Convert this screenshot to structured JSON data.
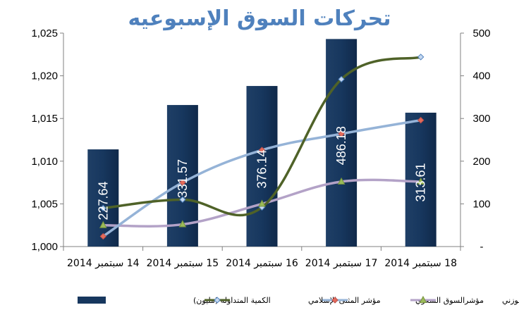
{
  "chart_data": {
    "type": "bar",
    "title": "تحركات السوق الإسبوعيه",
    "categories": [
      "14 سبتمبر 2014",
      "15 سبتمبر 2014",
      "16 سبتمبر 2014",
      "17 سبتمبر 2014",
      "18 سبتمبر 2014"
    ],
    "left_axis": {
      "ylim": [
        1000,
        1025
      ],
      "ticks": [
        1000,
        1005,
        1010,
        1015,
        1020,
        1025
      ],
      "tick_labels": [
        "1,000",
        "1,005",
        "1,010",
        "1,015",
        "1,020",
        "1,025"
      ]
    },
    "right_axis": {
      "ylim": [
        0,
        500
      ],
      "ticks": [
        0,
        100,
        200,
        300,
        400,
        500
      ],
      "tick_labels": [
        "-",
        "100",
        "200",
        "300",
        "400",
        "500"
      ]
    },
    "series": [
      {
        "name": "الكمية المتداوله (مليون)",
        "kind": "bar",
        "axis": "right",
        "color": "#17375e",
        "values": [
          227.64,
          331.57,
          376.14,
          486.18,
          313.61
        ],
        "data_labels": [
          "227.64",
          "331.57",
          "376.14",
          "486.18",
          "313.61"
        ]
      },
      {
        "name": "مؤشر المثنى الإسلامي",
        "kind": "line",
        "axis": "left",
        "color": "#4f6228",
        "marker": "diamond",
        "values": [
          1004.5,
          1005.5,
          1004.6,
          1019.6,
          1022.2
        ]
      },
      {
        "name": "مؤشرالسوق السعري",
        "kind": "line",
        "axis": "left",
        "color": "#95b3d7",
        "marker": "diamond-red",
        "values": [
          1001.2,
          1007.5,
          1011.3,
          1013.2,
          1014.8
        ]
      },
      {
        "name": "مؤشر السوق الوزني",
        "kind": "line",
        "axis": "left",
        "color": "#b3a2c7",
        "marker": "triangle",
        "values": [
          1002.5,
          1002.6,
          1005.0,
          1007.6,
          1007.6
        ]
      }
    ],
    "legend_position": "bottom",
    "grid": false,
    "title_color": "#4f81bd"
  }
}
